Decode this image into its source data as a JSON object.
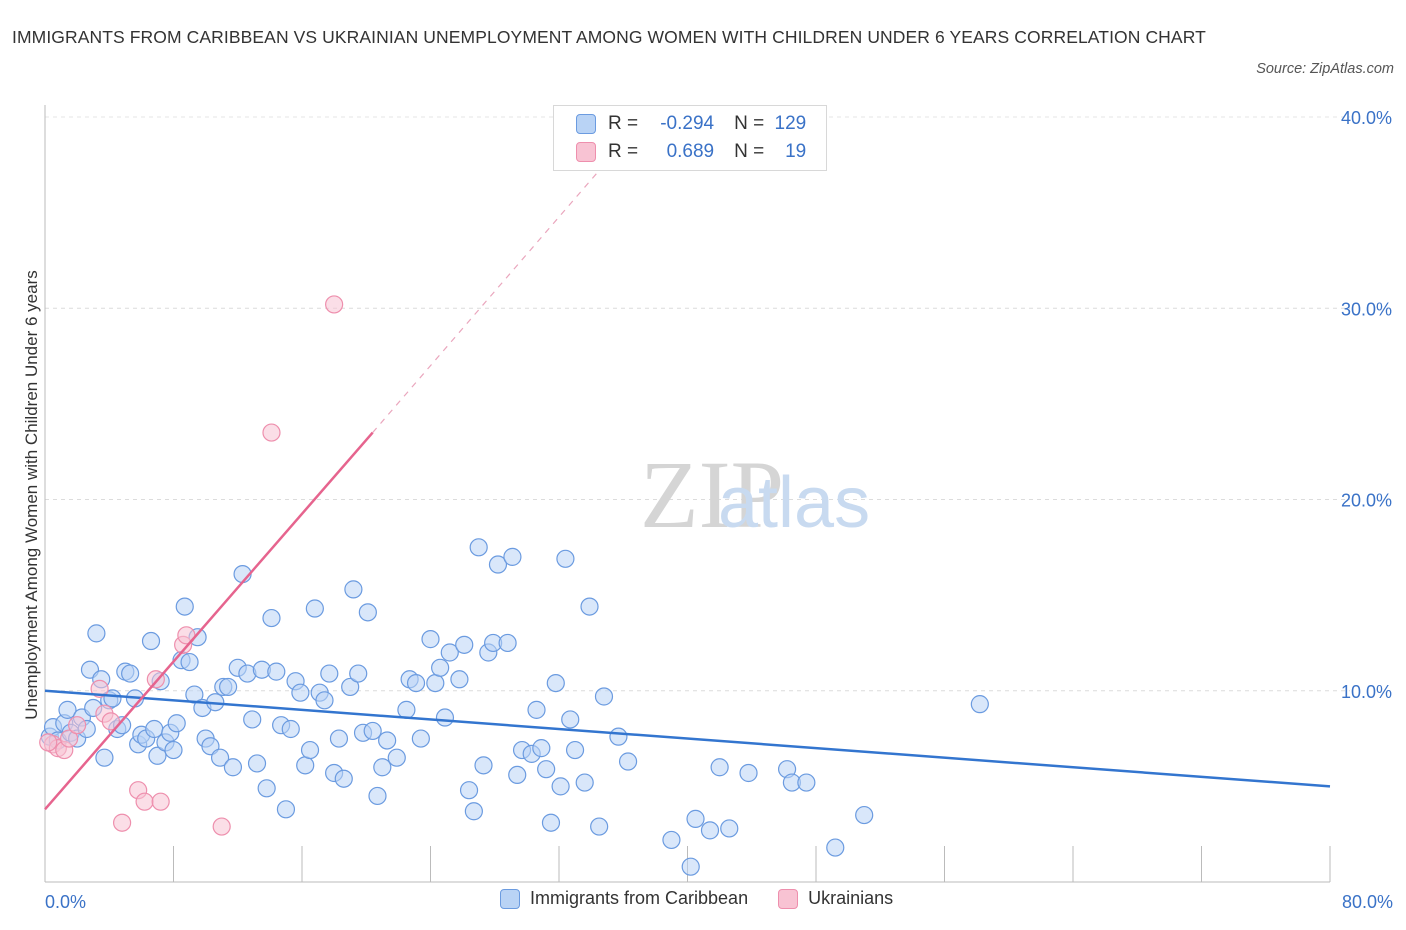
{
  "title": "IMMIGRANTS FROM CARIBBEAN VS UKRAINIAN UNEMPLOYMENT AMONG WOMEN WITH CHILDREN UNDER 6 YEARS CORRELATION CHART",
  "source": "Source: ZipAtlas.com",
  "watermark": {
    "zip": "ZIP",
    "atlas": "atlas"
  },
  "colors": {
    "blue_fill": "#b9d3f5",
    "blue_stroke": "#6b9be0",
    "blue_line": "#3375cf",
    "pink_fill": "#f8c3d3",
    "pink_stroke": "#ee8fad",
    "pink_line": "#e6648e",
    "tick_text": "#3a72c7"
  },
  "stats": {
    "labels": {
      "r": "R =",
      "n": "N ="
    },
    "rows": [
      {
        "r": "-0.294",
        "n": "129"
      },
      {
        "r": "0.689",
        "n": "19"
      }
    ]
  },
  "chart_data": {
    "type": "scatter",
    "title": "IMMIGRANTS FROM CARIBBEAN VS UKRAINIAN UNEMPLOYMENT AMONG WOMEN WITH CHILDREN UNDER 6 YEARS CORRELATION CHART",
    "xlabel": "",
    "ylabel": "Unemployment Among Women with Children Under 6 years",
    "xlim": [
      0,
      80
    ],
    "ylim": [
      0,
      40
    ],
    "x_tick_labels": [
      "0.0%",
      "80.0%"
    ],
    "y_ticks": [
      10,
      20,
      30,
      40
    ],
    "y_tick_labels": [
      "10.0%",
      "20.0%",
      "30.0%",
      "40.0%"
    ],
    "grid": "horizontal dashed",
    "legend_position": "bottom-center",
    "series": [
      {
        "name": "Immigrants from Caribbean",
        "r": -0.294,
        "n": 129,
        "trend": {
          "x": [
            0,
            80
          ],
          "y": [
            10.0,
            5.0
          ]
        },
        "points": [
          [
            0.3,
            7.6
          ],
          [
            0.5,
            8.1
          ],
          [
            0.8,
            7.4
          ],
          [
            1.2,
            8.3
          ],
          [
            1.4,
            9.0
          ],
          [
            1.6,
            7.8
          ],
          [
            2.0,
            7.5
          ],
          [
            2.3,
            8.6
          ],
          [
            2.6,
            8.0
          ],
          [
            2.8,
            11.1
          ],
          [
            3.0,
            9.1
          ],
          [
            3.2,
            13.0
          ],
          [
            3.5,
            10.6
          ],
          [
            3.7,
            6.5
          ],
          [
            4.0,
            9.5
          ],
          [
            4.2,
            9.6
          ],
          [
            4.5,
            8.0
          ],
          [
            4.8,
            8.2
          ],
          [
            5.0,
            11.0
          ],
          [
            5.3,
            10.9
          ],
          [
            5.6,
            9.6
          ],
          [
            5.8,
            7.2
          ],
          [
            6.0,
            7.7
          ],
          [
            6.3,
            7.5
          ],
          [
            6.6,
            12.6
          ],
          [
            6.8,
            8.0
          ],
          [
            7.0,
            6.6
          ],
          [
            7.2,
            10.5
          ],
          [
            7.5,
            7.3
          ],
          [
            7.8,
            7.8
          ],
          [
            8.0,
            6.9
          ],
          [
            8.2,
            8.3
          ],
          [
            8.5,
            11.6
          ],
          [
            8.7,
            14.4
          ],
          [
            9.0,
            11.5
          ],
          [
            9.3,
            9.8
          ],
          [
            9.5,
            12.8
          ],
          [
            9.8,
            9.1
          ],
          [
            10.0,
            7.5
          ],
          [
            10.3,
            7.1
          ],
          [
            10.6,
            9.4
          ],
          [
            10.9,
            6.5
          ],
          [
            11.1,
            10.2
          ],
          [
            11.4,
            10.2
          ],
          [
            11.7,
            6.0
          ],
          [
            12.0,
            11.2
          ],
          [
            12.3,
            16.1
          ],
          [
            12.6,
            10.9
          ],
          [
            12.9,
            8.5
          ],
          [
            13.2,
            6.2
          ],
          [
            13.5,
            11.1
          ],
          [
            13.8,
            4.9
          ],
          [
            14.1,
            13.8
          ],
          [
            14.4,
            11.0
          ],
          [
            14.7,
            8.2
          ],
          [
            15.0,
            3.8
          ],
          [
            15.3,
            8.0
          ],
          [
            15.6,
            10.5
          ],
          [
            15.9,
            9.9
          ],
          [
            16.2,
            6.1
          ],
          [
            16.5,
            6.9
          ],
          [
            16.8,
            14.3
          ],
          [
            17.1,
            9.9
          ],
          [
            17.4,
            9.5
          ],
          [
            17.7,
            10.9
          ],
          [
            18.0,
            5.7
          ],
          [
            18.3,
            7.5
          ],
          [
            18.6,
            5.4
          ],
          [
            19.0,
            10.2
          ],
          [
            19.2,
            15.3
          ],
          [
            19.5,
            10.9
          ],
          [
            19.8,
            7.8
          ],
          [
            20.1,
            14.1
          ],
          [
            20.4,
            7.9
          ],
          [
            20.7,
            4.5
          ],
          [
            21.0,
            6.0
          ],
          [
            21.3,
            7.4
          ],
          [
            21.9,
            6.5
          ],
          [
            22.5,
            9.0
          ],
          [
            22.7,
            10.6
          ],
          [
            23.1,
            10.4
          ],
          [
            23.4,
            7.5
          ],
          [
            24.0,
            12.7
          ],
          [
            24.3,
            10.4
          ],
          [
            24.6,
            11.2
          ],
          [
            24.9,
            8.6
          ],
          [
            25.2,
            12.0
          ],
          [
            25.8,
            10.6
          ],
          [
            26.1,
            12.4
          ],
          [
            26.4,
            4.8
          ],
          [
            26.7,
            3.7
          ],
          [
            27.0,
            17.5
          ],
          [
            27.3,
            6.1
          ],
          [
            27.6,
            12.0
          ],
          [
            27.9,
            12.5
          ],
          [
            28.2,
            16.6
          ],
          [
            28.8,
            12.5
          ],
          [
            29.1,
            17.0
          ],
          [
            29.4,
            5.6
          ],
          [
            29.7,
            6.9
          ],
          [
            30.3,
            6.7
          ],
          [
            30.6,
            9.0
          ],
          [
            30.9,
            7.0
          ],
          [
            31.2,
            5.9
          ],
          [
            31.5,
            3.1
          ],
          [
            31.8,
            10.4
          ],
          [
            32.1,
            5.0
          ],
          [
            32.4,
            16.9
          ],
          [
            32.7,
            8.5
          ],
          [
            33.0,
            6.9
          ],
          [
            33.6,
            5.2
          ],
          [
            33.9,
            14.4
          ],
          [
            34.5,
            2.9
          ],
          [
            34.8,
            9.7
          ],
          [
            35.7,
            7.6
          ],
          [
            36.3,
            6.3
          ],
          [
            39.0,
            2.2
          ],
          [
            40.2,
            0.8
          ],
          [
            40.5,
            3.3
          ],
          [
            41.4,
            2.7
          ],
          [
            42.0,
            6.0
          ],
          [
            42.6,
            2.8
          ],
          [
            43.8,
            5.7
          ],
          [
            46.2,
            5.9
          ],
          [
            46.5,
            5.2
          ],
          [
            47.4,
            5.2
          ],
          [
            49.2,
            1.8
          ],
          [
            51.0,
            3.5
          ],
          [
            58.2,
            9.3
          ]
        ]
      },
      {
        "name": "Ukrainians",
        "r": 0.689,
        "n": 19,
        "trend": {
          "x": [
            0,
            20.4
          ],
          "y": [
            3.8,
            23.5
          ]
        },
        "trend_extension": {
          "x": [
            20.4,
            34.6
          ],
          "y": [
            23.5,
            37.3
          ]
        },
        "points": [
          [
            0.5,
            7.2
          ],
          [
            0.8,
            7.0
          ],
          [
            1.2,
            6.9
          ],
          [
            1.5,
            7.5
          ],
          [
            2.0,
            8.2
          ],
          [
            3.4,
            10.1
          ],
          [
            3.7,
            8.8
          ],
          [
            4.1,
            8.4
          ],
          [
            4.8,
            3.1
          ],
          [
            5.8,
            4.8
          ],
          [
            6.2,
            4.2
          ],
          [
            6.9,
            10.6
          ],
          [
            7.2,
            4.2
          ],
          [
            8.6,
            12.4
          ],
          [
            8.8,
            12.9
          ],
          [
            11.0,
            2.9
          ],
          [
            14.1,
            23.5
          ],
          [
            18.0,
            30.2
          ],
          [
            0.2,
            7.3
          ]
        ]
      }
    ]
  },
  "legend": {
    "items": [
      {
        "label": "Immigrants from Caribbean",
        "color_fill": "#b9d3f5",
        "color_stroke": "#6b9be0"
      },
      {
        "label": "Ukrainians",
        "color_fill": "#f8c3d3",
        "color_stroke": "#ee8fad"
      }
    ]
  }
}
